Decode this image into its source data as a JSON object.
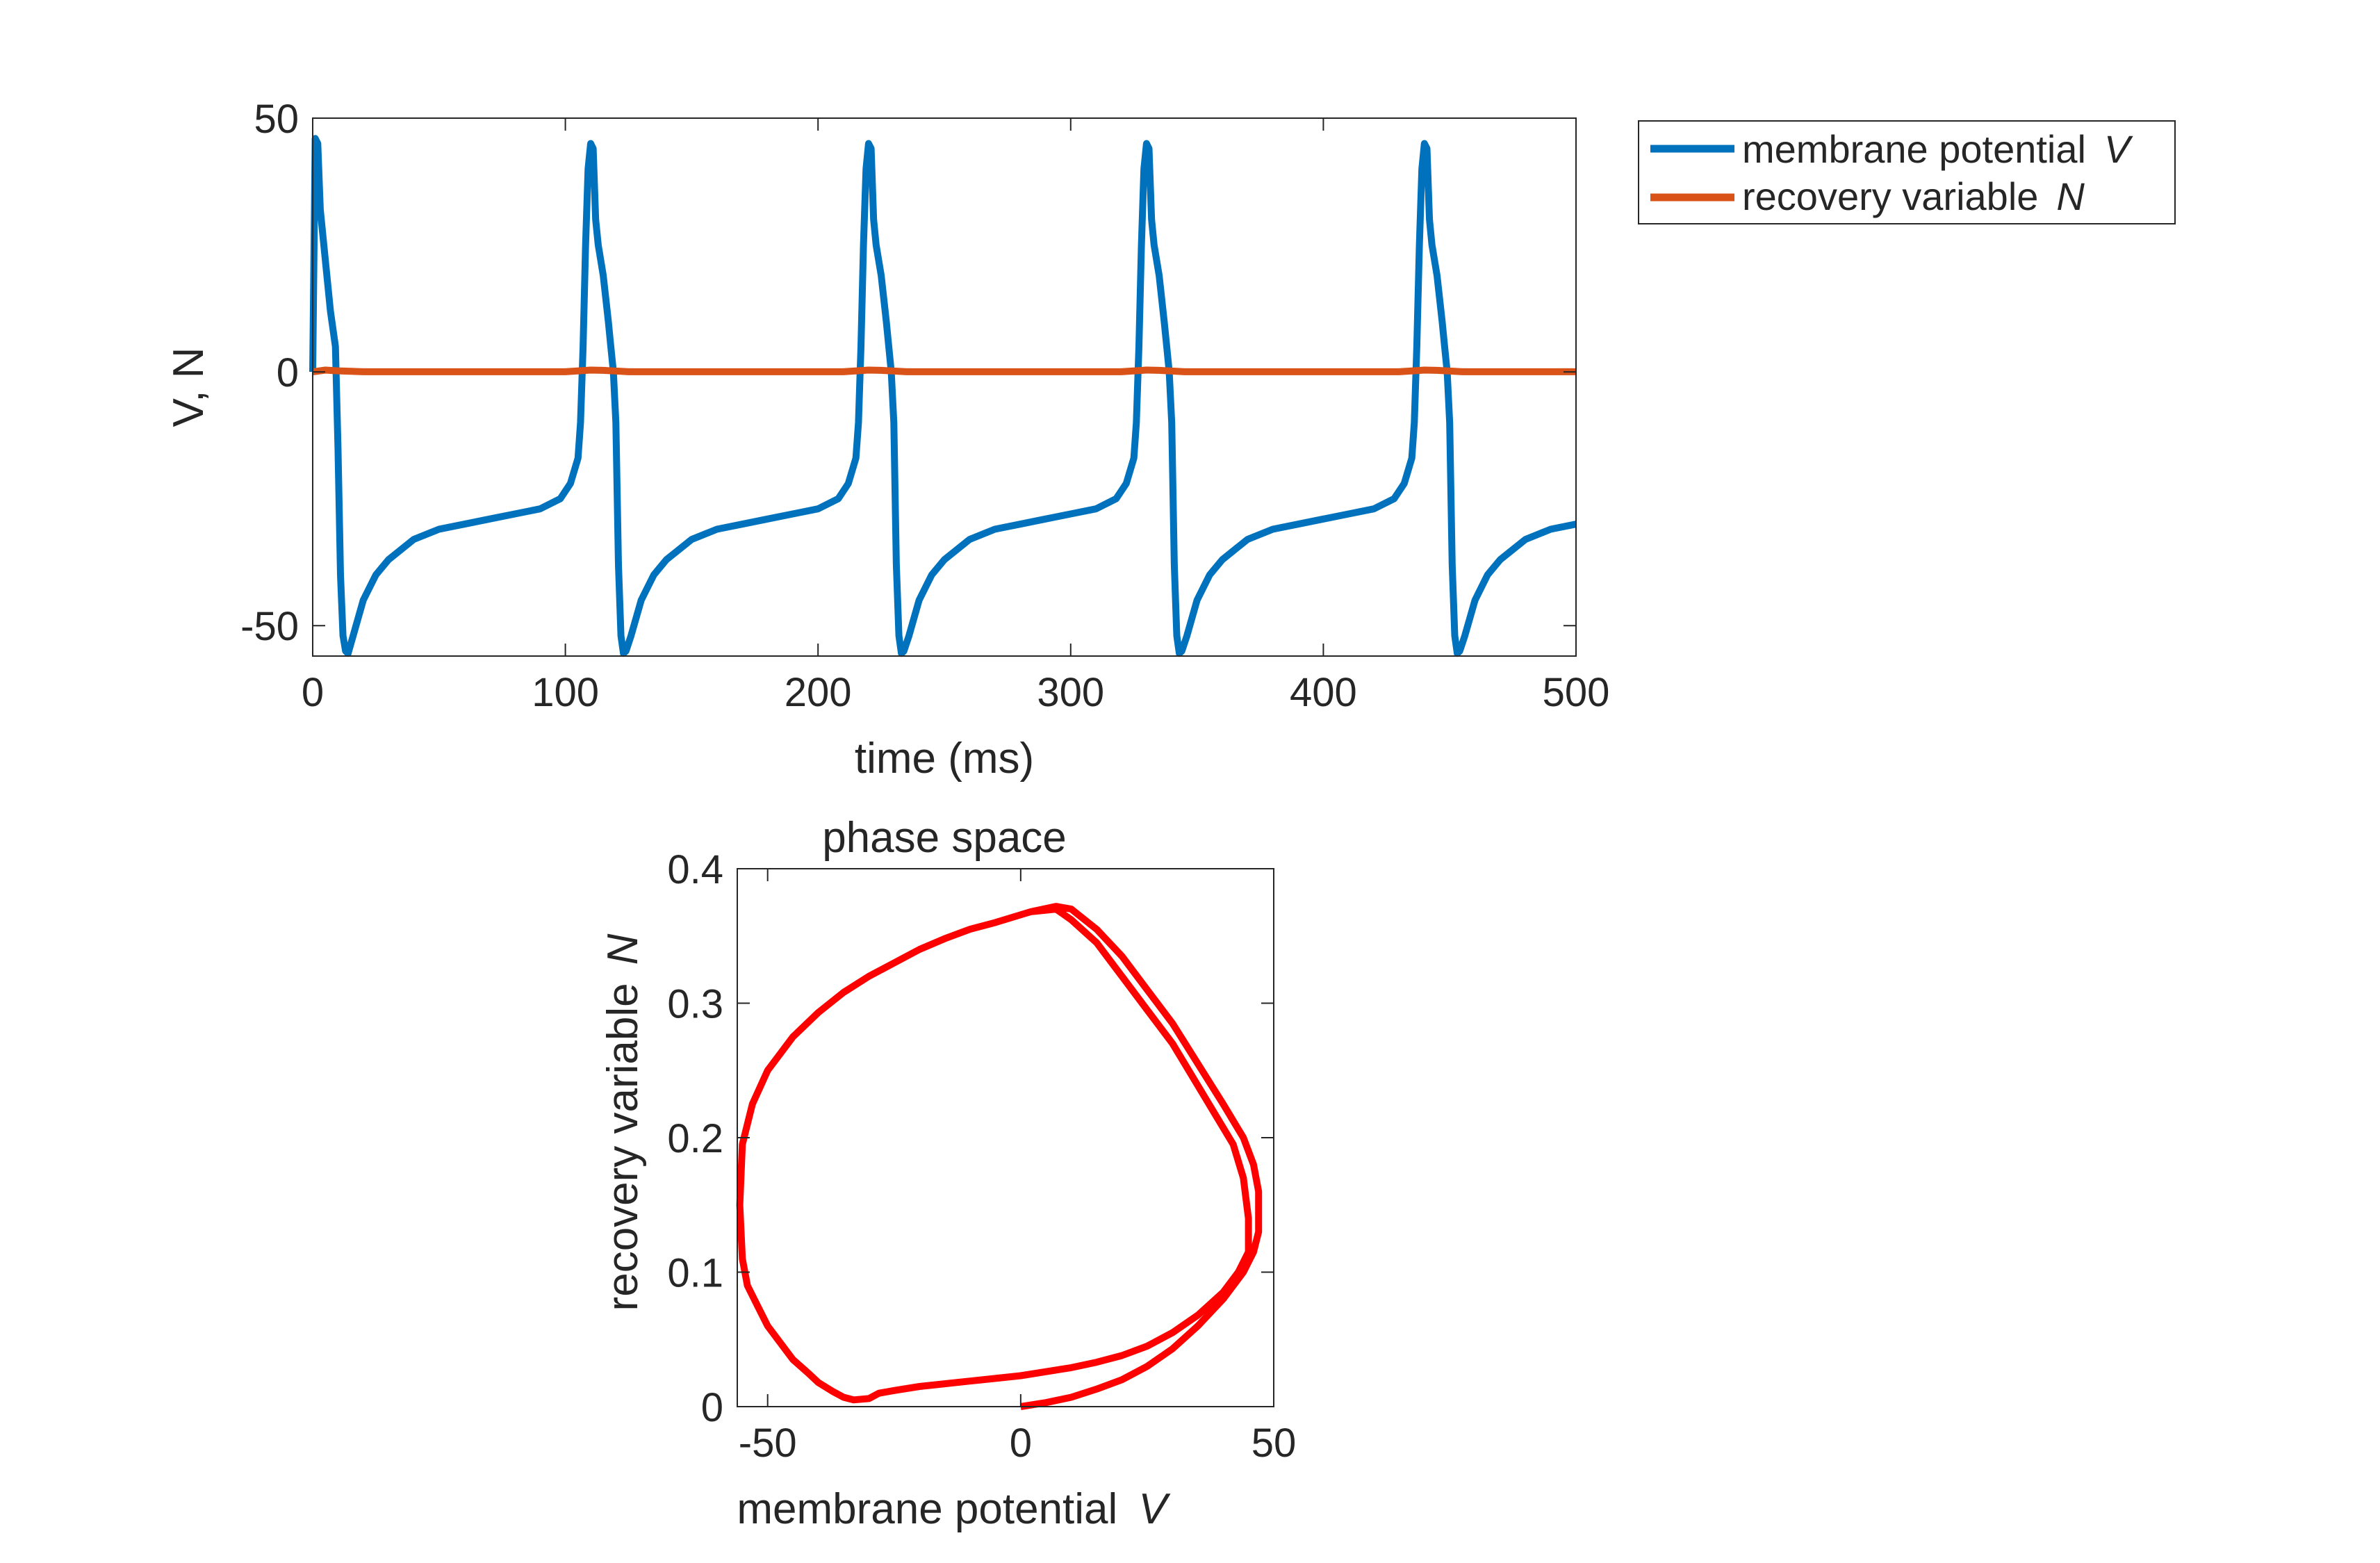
{
  "chart_data": [
    {
      "type": "line",
      "title": "",
      "xlabel": "time (ms)",
      "ylabel": "V, N",
      "xlim": [
        0,
        500
      ],
      "ylim": [
        -56,
        50
      ],
      "xticks": [
        0,
        100,
        200,
        300,
        400,
        500
      ],
      "xtick_labels": [
        "0",
        "100",
        "200",
        "300",
        "400",
        "500"
      ],
      "yticks": [
        -50,
        0,
        50
      ],
      "ytick_labels": [
        "-50",
        "0",
        "50"
      ],
      "grid": false,
      "legend_position": "outside-top-right",
      "legend": [
        {
          "label": "membrane potential",
          "label_var": "V",
          "color": "#0072BD"
        },
        {
          "label": "recovery variable",
          "label_var": "N",
          "color": "#D95319"
        }
      ],
      "series": [
        {
          "name": "membrane potential V",
          "color": "#0072BD",
          "x": [
            0,
            1,
            2,
            3,
            5,
            7,
            9,
            10,
            11,
            12,
            13,
            14,
            16,
            20,
            25,
            30,
            40,
            50,
            60,
            70,
            80,
            90,
            98,
            102,
            105,
            106,
            107,
            108,
            109,
            110,
            111,
            112,
            113,
            115,
            117,
            118,
            119,
            120,
            121,
            122,
            123,
            124,
            126,
            130,
            135,
            140,
            150,
            160,
            170,
            180,
            190,
            200,
            208,
            212,
            215,
            216,
            217,
            218,
            219,
            220,
            221,
            222,
            223,
            225,
            227,
            228,
            229,
            230,
            231,
            232,
            233,
            234,
            236,
            240,
            245,
            250,
            260,
            270,
            280,
            290,
            300,
            310,
            318,
            322,
            325,
            326,
            327,
            328,
            329,
            330,
            331,
            332,
            333,
            335,
            337,
            338,
            339,
            340,
            341,
            342,
            343,
            344,
            346,
            350,
            355,
            360,
            370,
            380,
            390,
            400,
            410,
            420,
            428,
            432,
            435,
            436,
            437,
            438,
            439,
            440,
            441,
            442,
            443,
            445,
            447,
            448,
            449,
            450,
            451,
            452,
            453,
            454,
            456,
            460,
            465,
            470,
            480,
            490,
            500
          ],
          "y": [
            0,
            46,
            45,
            32,
            22,
            12,
            5,
            -15,
            -40,
            -52,
            -55,
            -55.5,
            -52,
            -45,
            -40,
            -37,
            -33,
            -31,
            -30,
            -29,
            -28,
            -27,
            -25,
            -22,
            -17,
            -10,
            5,
            25,
            40,
            45,
            44,
            30,
            25,
            19,
            10,
            5,
            0,
            -10,
            -38,
            -52,
            -55.5,
            -55,
            -52,
            -45,
            -40,
            -37,
            -33,
            -31,
            -30,
            -29,
            -28,
            -27,
            -25,
            -22,
            -17,
            -10,
            5,
            25,
            40,
            45,
            44,
            30,
            25,
            19,
            10,
            5,
            0,
            -10,
            -38,
            -52,
            -55.5,
            -55,
            -52,
            -45,
            -40,
            -37,
            -33,
            -31,
            -30,
            -29,
            -28,
            -27,
            -25,
            -22,
            -17,
            -10,
            5,
            25,
            40,
            45,
            44,
            30,
            25,
            19,
            10,
            5,
            0,
            -10,
            -38,
            -52,
            -55.5,
            -55,
            -52,
            -45,
            -40,
            -37,
            -33,
            -31,
            -30,
            -29,
            -28,
            -27,
            -25,
            -22,
            -17,
            -10,
            5,
            25,
            40,
            45,
            44,
            30,
            25,
            19,
            10,
            5,
            0,
            -10,
            -38,
            -52,
            -55.5,
            -55,
            -52,
            -45,
            -40,
            -37,
            -33,
            -31,
            -30
          ]
        },
        {
          "name": "recovery variable N",
          "color": "#D95319",
          "x": [
            0,
            5,
            10,
            20,
            100,
            110,
            115,
            125,
            210,
            220,
            225,
            235,
            320,
            330,
            335,
            345,
            430,
            440,
            445,
            455,
            500
          ],
          "y": [
            0,
            0.35,
            0.2,
            0.02,
            0.02,
            0.35,
            0.3,
            0.02,
            0.02,
            0.35,
            0.3,
            0.02,
            0.02,
            0.35,
            0.3,
            0.02,
            0.02,
            0.35,
            0.3,
            0.02,
            0.02
          ]
        }
      ]
    },
    {
      "type": "line",
      "title": "phase space",
      "xlabel": "membrane potential",
      "xlabel_var": "V",
      "ylabel": "recovery variable",
      "ylabel_var": "N",
      "xlim": [
        -56,
        50
      ],
      "ylim": [
        0,
        0.4
      ],
      "xticks": [
        -50,
        0,
        50
      ],
      "xtick_labels": [
        "-50",
        "0",
        "50"
      ],
      "yticks": [
        0,
        0.1,
        0.2,
        0.3,
        0.4
      ],
      "ytick_labels": [
        "0",
        "0.1",
        "0.2",
        "0.3",
        "0.4"
      ],
      "grid": false,
      "series": [
        {
          "name": "",
          "color": "#FF0000",
          "x": [
            0,
            5,
            10,
            15,
            20,
            25,
            30,
            35,
            40,
            44,
            46,
            47,
            47,
            46,
            44,
            40,
            35,
            30,
            25,
            20,
            15,
            10,
            7,
            2,
            -5,
            -10,
            -15,
            -20,
            -25,
            -30,
            -35,
            -40,
            -45,
            -50,
            -53,
            -55,
            -55.5,
            -55,
            -54,
            -52,
            -50,
            -47,
            -45,
            -42,
            -40,
            -37,
            -35,
            -33,
            -30,
            -28,
            -25,
            -20,
            -15,
            -10,
            -5,
            0,
            5,
            10,
            15,
            20,
            25,
            30,
            35,
            40,
            43,
            45,
            45,
            44,
            42,
            38,
            34,
            30,
            25,
            20,
            15,
            10,
            7,
            2,
            -5,
            -10,
            -15,
            -20,
            -25,
            -30,
            -35,
            -40,
            -45,
            -50,
            -53,
            -55,
            -55.5,
            -55,
            -54,
            -52,
            -50,
            -47,
            -45,
            -42,
            -40,
            -37,
            -35,
            -33,
            -30,
            -28,
            -25
          ],
          "y": [
            0,
            0.003,
            0.007,
            0.013,
            0.02,
            0.03,
            0.043,
            0.06,
            0.08,
            0.1,
            0.115,
            0.13,
            0.16,
            0.18,
            0.2,
            0.225,
            0.255,
            0.285,
            0.31,
            0.335,
            0.355,
            0.37,
            0.372,
            0.368,
            0.36,
            0.355,
            0.348,
            0.34,
            0.33,
            0.32,
            0.308,
            0.293,
            0.275,
            0.25,
            0.225,
            0.195,
            0.15,
            0.11,
            0.09,
            0.075,
            0.06,
            0.045,
            0.035,
            0.025,
            0.018,
            0.011,
            0.007,
            0.005,
            0.006,
            0.01,
            0.012,
            0.015,
            0.017,
            0.019,
            0.021,
            0.023,
            0.026,
            0.029,
            0.033,
            0.038,
            0.045,
            0.055,
            0.068,
            0.085,
            0.1,
            0.115,
            0.14,
            0.17,
            0.195,
            0.22,
            0.245,
            0.27,
            0.295,
            0.32,
            0.345,
            0.362,
            0.37,
            0.368,
            0.36,
            0.355,
            0.348,
            0.34,
            0.33,
            0.32,
            0.308,
            0.293,
            0.275,
            0.25,
            0.225,
            0.195,
            0.15,
            0.11,
            0.09,
            0.075,
            0.06,
            0.045,
            0.035,
            0.025,
            0.018,
            0.011,
            0.007,
            0.005,
            0.006,
            0.01,
            0.012
          ]
        }
      ]
    }
  ]
}
